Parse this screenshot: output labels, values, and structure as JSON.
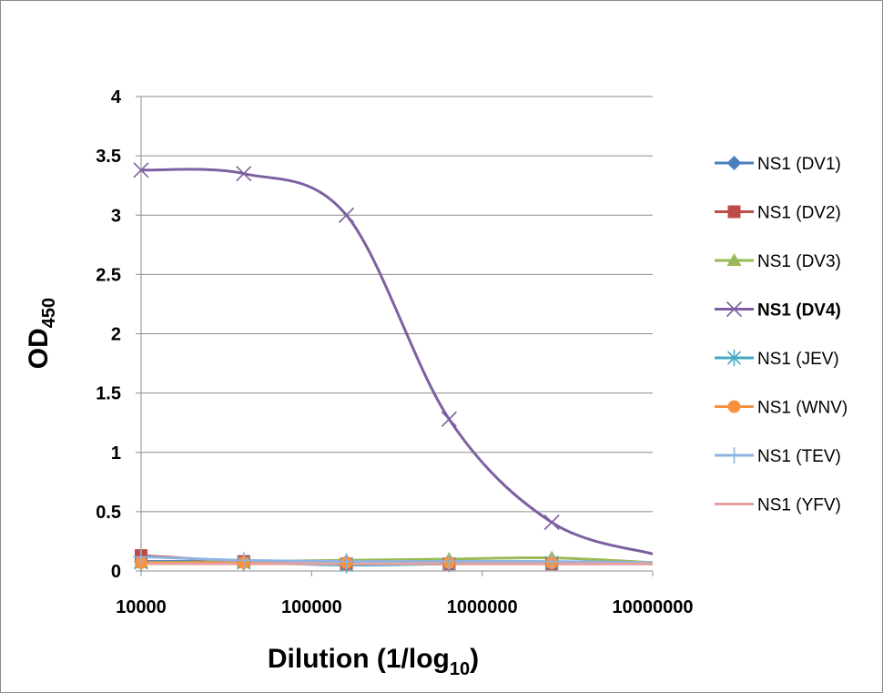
{
  "chart_data": {
    "type": "line",
    "xlabel": "Dilution (1/log",
    "xlabel_sub": "10",
    "xlabel_suffix": ")",
    "ylabel": "OD",
    "ylabel_sub": "450",
    "x_scale": "log",
    "xlim": [
      10000,
      10000000
    ],
    "ylim": [
      0,
      4
    ],
    "x_ticks": [
      "10000",
      "100000",
      "1000000",
      "10000000"
    ],
    "y_ticks": [
      "0",
      "0.5",
      "1",
      "1.5",
      "2",
      "2.5",
      "3",
      "3.5",
      "4"
    ],
    "grid": true,
    "legend_position": "right",
    "x": [
      10000,
      40000,
      160000,
      640000,
      2560000,
      10240000
    ],
    "series": [
      {
        "name": "NS1 (DV1)",
        "color": "#4a7ebb",
        "marker": "diamond",
        "values": [
          0.08,
          0.08,
          0.07,
          0.07,
          0.07,
          0.07
        ]
      },
      {
        "name": "NS1 (DV2)",
        "color": "#be4b48",
        "marker": "square",
        "values": [
          0.13,
          0.08,
          0.06,
          0.06,
          0.06,
          0.06
        ]
      },
      {
        "name": "NS1 (DV3)",
        "color": "#98b954",
        "marker": "triangle",
        "values": [
          0.07,
          0.08,
          0.09,
          0.1,
          0.11,
          0.07
        ]
      },
      {
        "name": "NS1 (DV4)",
        "color": "#7d60a0",
        "marker": "x",
        "bold": true,
        "values": [
          3.38,
          3.35,
          3.0,
          1.28,
          0.41,
          0.14
        ]
      },
      {
        "name": "NS1 (JEV)",
        "color": "#46aac5",
        "marker": "star",
        "values": [
          0.07,
          0.07,
          0.05,
          0.06,
          0.07,
          0.06
        ]
      },
      {
        "name": "NS1 (WNV)",
        "color": "#f69240",
        "marker": "circle",
        "values": [
          0.07,
          0.07,
          0.07,
          0.07,
          0.07,
          0.06
        ]
      },
      {
        "name": "NS1 (TEV)",
        "color": "#8eb4e3",
        "marker": "plus",
        "values": [
          0.12,
          0.09,
          0.08,
          0.08,
          0.08,
          0.07
        ]
      },
      {
        "name": "NS1 (YFV)",
        "color": "#e6a0a0",
        "marker": "none",
        "values": [
          0.06,
          0.06,
          0.06,
          0.06,
          0.06,
          0.06
        ]
      }
    ]
  }
}
